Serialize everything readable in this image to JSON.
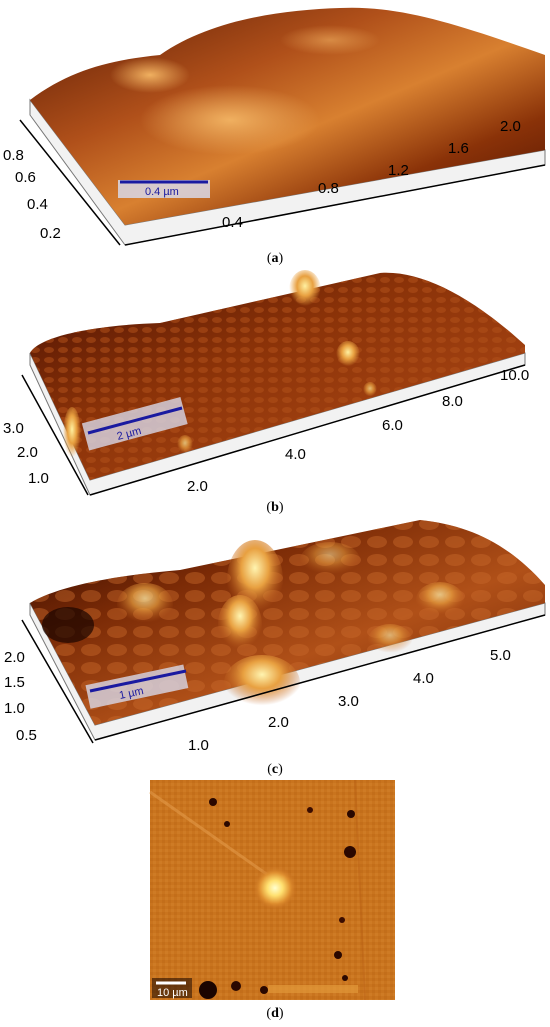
{
  "panels": [
    {
      "id": "a",
      "caption_letter": "a",
      "scale_bar": "0.4 µm",
      "x_ticks": [
        "0.4",
        "0.8",
        "1.2",
        "1.6",
        "2.0"
      ],
      "y_ticks": [
        "0.8",
        "0.6",
        "0.4",
        "0.2"
      ]
    },
    {
      "id": "b",
      "caption_letter": "b",
      "scale_bar": "2 µm",
      "x_ticks": [
        "2.0",
        "4.0",
        "6.0",
        "8.0",
        "10.0"
      ],
      "y_ticks": [
        "3.0",
        "2.0",
        "1.0"
      ]
    },
    {
      "id": "c",
      "caption_letter": "c",
      "scale_bar": "1 µm",
      "x_ticks": [
        "1.0",
        "2.0",
        "3.0",
        "4.0",
        "5.0"
      ],
      "y_ticks": [
        "2.0",
        "1.5",
        "1.0",
        "0.5"
      ]
    },
    {
      "id": "d",
      "caption_letter": "d",
      "scale_bar": "10 µm"
    }
  ],
  "colors": {
    "surface_dark": "#3a0a00",
    "surface_mid": "#8a3208",
    "surface_light": "#e8a040",
    "peak": "#fff0a0",
    "scale_bar_line": "#1a1aa0"
  }
}
